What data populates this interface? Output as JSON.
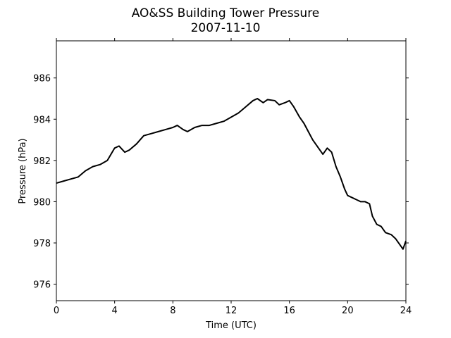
{
  "chart_data": {
    "type": "line",
    "title": "AO&SS Building Tower Pressure",
    "subtitle": "2007-11-10",
    "x_label": "Time (UTC)",
    "y_label": "Pressure (hPa)",
    "x": [
      0,
      0.5,
      1,
      1.5,
      2,
      2.5,
      3,
      3.5,
      4,
      4.3,
      4.7,
      5,
      5.5,
      6,
      6.5,
      7,
      7.5,
      8,
      8.3,
      8.7,
      9,
      9.5,
      10,
      10.5,
      11,
      11.5,
      12,
      12.5,
      13,
      13.5,
      13.8,
      14.2,
      14.5,
      15,
      15.3,
      15.7,
      16,
      16.3,
      16.7,
      17,
      17.3,
      17.6,
      18,
      18.3,
      18.6,
      18.9,
      19.2,
      19.5,
      19.8,
      20,
      20.3,
      20.6,
      20.9,
      21.2,
      21.5,
      21.7,
      22,
      22.3,
      22.6,
      23,
      23.3,
      23.6,
      23.8,
      24
    ],
    "series": [
      {
        "name": "Pressure",
        "color": "#000000",
        "values": [
          980.9,
          981.0,
          981.1,
          981.2,
          981.5,
          981.7,
          981.8,
          982.0,
          982.6,
          982.7,
          982.4,
          982.5,
          982.8,
          983.2,
          983.3,
          983.4,
          983.5,
          983.6,
          983.7,
          983.5,
          983.4,
          983.6,
          983.7,
          983.7,
          983.8,
          983.9,
          984.1,
          984.3,
          984.6,
          984.9,
          985.0,
          984.8,
          984.95,
          984.9,
          984.7,
          984.8,
          984.9,
          984.6,
          984.1,
          983.8,
          983.4,
          983.0,
          982.6,
          982.3,
          982.6,
          982.4,
          981.7,
          981.2,
          980.6,
          980.3,
          980.2,
          980.1,
          980.0,
          980.0,
          979.9,
          979.3,
          978.9,
          978.8,
          978.5,
          978.4,
          978.2,
          977.9,
          977.7,
          978.1
        ]
      }
    ],
    "xlim": [
      0,
      24
    ],
    "xticks": [
      0,
      4,
      8,
      12,
      16,
      20,
      24
    ],
    "ylim": [
      975.2,
      987.8
    ],
    "yticks": [
      976,
      978,
      980,
      982,
      984,
      986
    ]
  }
}
